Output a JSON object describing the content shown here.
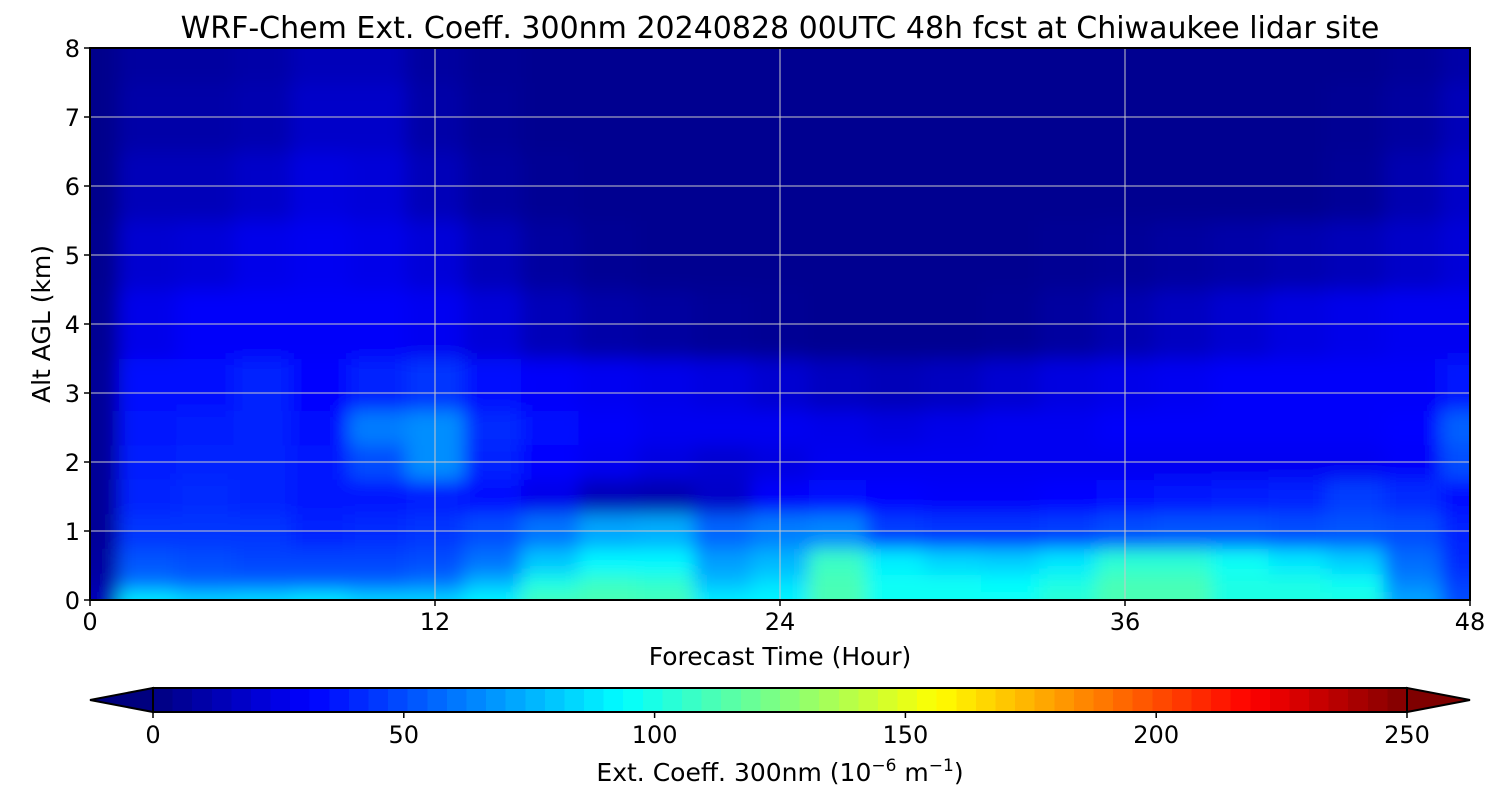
{
  "chart_data": {
    "type": "heatmap",
    "title": "WRF-Chem Ext. Coeff. 300nm  20240828 00UTC 48h fcst at Chiwaukee lidar site",
    "xlabel": "Forecast Time (Hour)",
    "ylabel": "Alt AGL (km)",
    "xlim": [
      0,
      48
    ],
    "ylim": [
      0,
      8
    ],
    "xticks": [
      "0",
      "12",
      "24",
      "36",
      "48"
    ],
    "yticks": [
      "0",
      "1",
      "2",
      "3",
      "4",
      "5",
      "6",
      "7",
      "8"
    ],
    "grid": true,
    "colorbar": {
      "label_main": "Ext. Coeff. 300nm  (10",
      "label_exp1": "−6",
      "label_mid": " m",
      "label_exp2": "−1",
      "label_end": ")",
      "range": [
        0,
        250
      ],
      "ticks": [
        "0",
        "50",
        "100",
        "150",
        "200",
        "250"
      ],
      "colormap": "jet",
      "extend": "both",
      "orientation": "horizontal",
      "placement": "bottom"
    },
    "x": [
      0,
      2,
      4,
      6,
      8,
      10,
      12,
      14,
      16,
      18,
      20,
      22,
      24,
      26,
      28,
      30,
      32,
      34,
      36,
      38,
      40,
      42,
      44,
      46,
      48
    ],
    "y": [
      0,
      0.25,
      0.5,
      1,
      1.5,
      2,
      2.5,
      3,
      4,
      5,
      6,
      7,
      8
    ],
    "z": [
      [
        14,
        90,
        84,
        86,
        90,
        84,
        84,
        92,
        110,
        112,
        110,
        90,
        92,
        112,
        96,
        96,
        96,
        104,
        112,
        112,
        100,
        100,
        100,
        72,
        50
      ],
      [
        10,
        60,
        56,
        56,
        56,
        56,
        60,
        76,
        100,
        108,
        106,
        78,
        86,
        112,
        96,
        96,
        94,
        100,
        112,
        112,
        100,
        100,
        96,
        64,
        46
      ],
      [
        8,
        52,
        50,
        48,
        48,
        48,
        50,
        60,
        80,
        92,
        92,
        70,
        76,
        108,
        90,
        84,
        82,
        88,
        104,
        104,
        96,
        88,
        82,
        58,
        42
      ],
      [
        6,
        44,
        44,
        44,
        40,
        42,
        44,
        50,
        60,
        72,
        74,
        56,
        62,
        64,
        46,
        44,
        44,
        46,
        50,
        52,
        52,
        50,
        52,
        50,
        40
      ],
      [
        6,
        40,
        42,
        40,
        36,
        36,
        38,
        34,
        26,
        14,
        12,
        18,
        30,
        34,
        32,
        30,
        30,
        32,
        34,
        36,
        38,
        40,
        46,
        42,
        34
      ],
      [
        6,
        38,
        40,
        40,
        36,
        50,
        66,
        40,
        32,
        28,
        24,
        20,
        24,
        28,
        28,
        28,
        28,
        28,
        28,
        28,
        28,
        28,
        28,
        30,
        50
      ],
      [
        6,
        36,
        38,
        40,
        34,
        62,
        66,
        42,
        34,
        30,
        28,
        28,
        28,
        26,
        24,
        26,
        28,
        28,
        30,
        30,
        30,
        30,
        30,
        32,
        55
      ],
      [
        6,
        34,
        34,
        40,
        32,
        40,
        44,
        34,
        30,
        28,
        26,
        24,
        20,
        16,
        14,
        16,
        20,
        24,
        26,
        28,
        30,
        30,
        30,
        30,
        36
      ],
      [
        5,
        26,
        30,
        30,
        30,
        30,
        28,
        22,
        14,
        10,
        8,
        6,
        5,
        4,
        4,
        4,
        5,
        8,
        12,
        16,
        20,
        24,
        26,
        28,
        28
      ],
      [
        4,
        20,
        22,
        26,
        28,
        26,
        22,
        14,
        8,
        5,
        4,
        4,
        4,
        4,
        4,
        4,
        4,
        5,
        6,
        8,
        10,
        12,
        14,
        18,
        22
      ],
      [
        3,
        14,
        14,
        18,
        24,
        22,
        14,
        8,
        5,
        4,
        4,
        4,
        4,
        4,
        4,
        4,
        4,
        4,
        4,
        4,
        4,
        4,
        6,
        12,
        18
      ],
      [
        3,
        10,
        10,
        12,
        18,
        18,
        10,
        6,
        4,
        4,
        4,
        4,
        4,
        4,
        4,
        4,
        4,
        4,
        4,
        4,
        4,
        4,
        5,
        8,
        14
      ],
      [
        3,
        8,
        8,
        10,
        14,
        14,
        8,
        5,
        4,
        4,
        4,
        4,
        4,
        4,
        4,
        4,
        4,
        4,
        4,
        4,
        4,
        4,
        4,
        6,
        10
      ]
    ]
  }
}
